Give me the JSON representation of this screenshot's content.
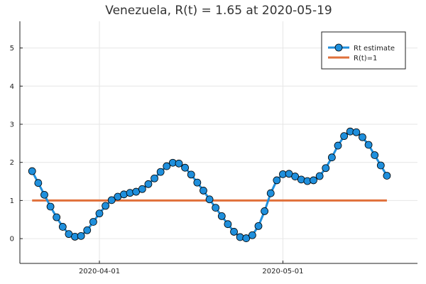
{
  "chart_data": {
    "type": "line",
    "title": "Venezuela, R(t) = 1.65 at 2020-05-19",
    "xlabel": "",
    "ylabel": "",
    "x_start": "2020-03-21",
    "xlim": [
      "2020-03-19",
      "2020-05-23"
    ],
    "ylim": [
      -0.65,
      5.7
    ],
    "xticks": [
      {
        "date": "2020-04-01",
        "label": "2020-04-01"
      },
      {
        "date": "2020-05-01",
        "label": "2020-05-01"
      }
    ],
    "yticks": [
      0,
      1,
      2,
      3,
      4,
      5
    ],
    "ytick_labels": [
      "0",
      "1",
      "2",
      "3",
      "4",
      "5"
    ],
    "grid": true,
    "legend_position": "top-right",
    "series": [
      {
        "name": "Rt estimate",
        "color": "#1f8fdc",
        "marker": "circle",
        "values": [
          1.77,
          1.46,
          1.15,
          0.84,
          0.56,
          0.31,
          0.12,
          0.05,
          0.07,
          0.22,
          0.44,
          0.66,
          0.86,
          1.01,
          1.1,
          1.16,
          1.2,
          1.23,
          1.3,
          1.43,
          1.58,
          1.75,
          1.9,
          1.99,
          1.97,
          1.86,
          1.68,
          1.47,
          1.26,
          1.03,
          0.81,
          0.59,
          0.38,
          0.18,
          0.04,
          0.01,
          0.09,
          0.33,
          0.72,
          1.19,
          1.53,
          1.69,
          1.7,
          1.63,
          1.55,
          1.51,
          1.53,
          1.64,
          1.85,
          2.13,
          2.44,
          2.69,
          2.81,
          2.79,
          2.66,
          2.46,
          2.19,
          1.92,
          1.65
        ]
      },
      {
        "name": "R(t)=1",
        "color": "#e0703a",
        "marker": "none",
        "values_constant": 1,
        "x_range": [
          "2020-03-21",
          "2020-05-18"
        ]
      }
    ]
  }
}
